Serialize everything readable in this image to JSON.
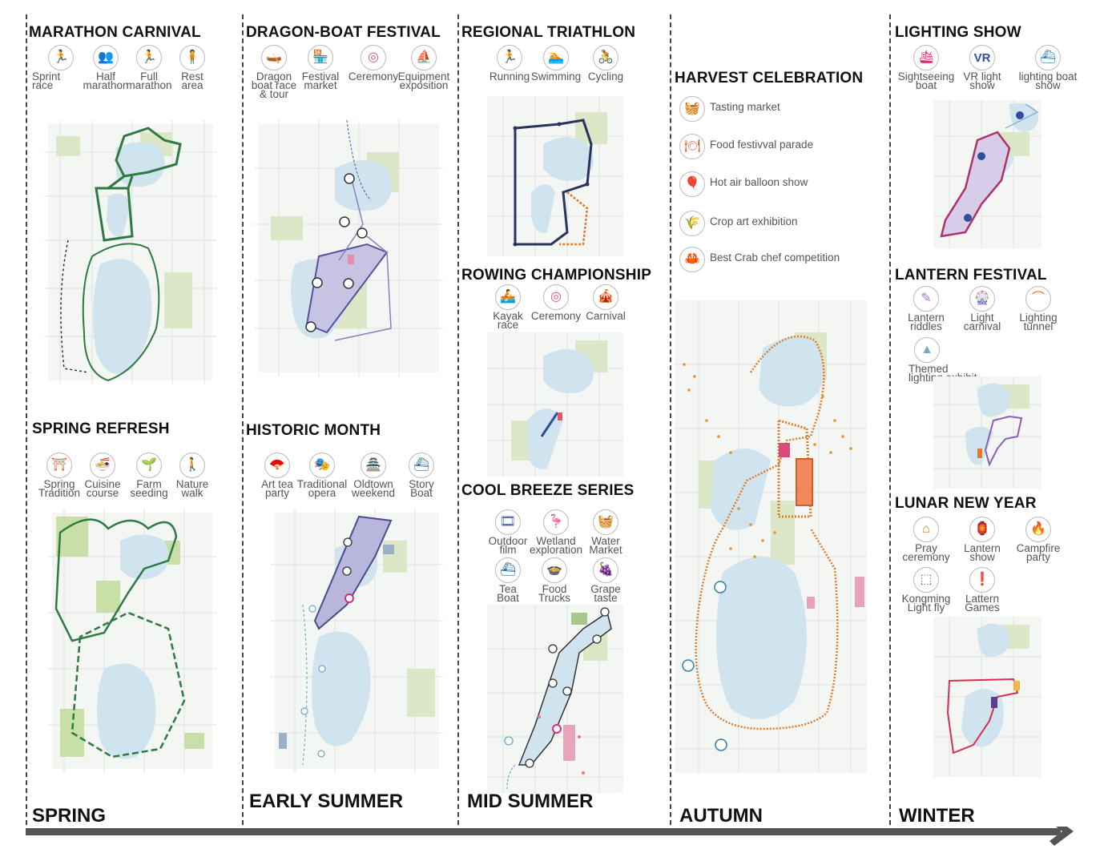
{
  "columns": [
    {
      "season": "SPRING",
      "events": [
        {
          "title": "MARATHON CARNIVAL",
          "activities": [
            {
              "label": "Sprint\nrace",
              "icon": "runner-icon",
              "color": "#2c7fb8"
            },
            {
              "label": "Half\nmarathon",
              "icon": "group-runners-icon",
              "color": "#3a9a3a"
            },
            {
              "label": "Full\nmarathon",
              "icon": "runner-icon",
              "color": "#2f8c63"
            },
            {
              "label": "Rest\narea",
              "icon": "resting-person-icon",
              "color": "#e8912d"
            }
          ]
        },
        {
          "title": "SPRING REFRESH",
          "activities": [
            {
              "label": "Spring\nTradition",
              "icon": "temple-icon",
              "color": "#d9642e"
            },
            {
              "label": "Cuisine\ncourse",
              "icon": "bowl-icon",
              "color": "#b5541f"
            },
            {
              "label": "Farm\nseeding",
              "icon": "sprout-icon",
              "color": "#b9c98a"
            },
            {
              "label": "Nature\nwalk",
              "icon": "walking-couple-icon",
              "color": "#2e7d4f"
            }
          ]
        }
      ]
    },
    {
      "season": "EARLY\nSUMMER",
      "events": [
        {
          "title": "DRAGON-BOAT FESTIVAL",
          "activities": [
            {
              "label": "Dragon\nboat race\n& tour",
              "icon": "dragon-boat-icon",
              "color": "#5b3f8f"
            },
            {
              "label": "Festival\nmarket",
              "icon": "market-icon",
              "color": "#e59a4a"
            },
            {
              "label": "Ceremony",
              "icon": "target-icon",
              "color": "#e0566d"
            },
            {
              "label": "Equipment\nexposition",
              "icon": "equipment-icon",
              "color": "#e6b84a"
            }
          ]
        },
        {
          "title": "HISTORIC MONTH",
          "activities": [
            {
              "label": "Art tea\nparty",
              "icon": "fan-icon",
              "color": "#b53a8c"
            },
            {
              "label": "Traditional\nopera",
              "icon": "opera-figure-icon",
              "color": "#6b6aa8"
            },
            {
              "label": "Oldtown\nweekend",
              "icon": "pagoda-icon",
              "color": "#d86b4a"
            },
            {
              "label": "Story\nBoat",
              "icon": "boat-icon",
              "color": "#2b6e9e"
            }
          ]
        }
      ]
    },
    {
      "season": "MID\nSUMMER",
      "events": [
        {
          "title": "REGIONAL TRIATHLON",
          "activities": [
            {
              "label": "Running",
              "icon": "runner-icon",
              "color": "#2557a8"
            },
            {
              "label": "Swimming",
              "icon": "swimmer-icon",
              "color": "#2e8b57"
            },
            {
              "label": "Cycling",
              "icon": "cyclist-icon",
              "color": "#e07a2c"
            }
          ]
        },
        {
          "title": "ROWING CHAMPIONSHIP",
          "activities": [
            {
              "label": "Kayak\nrace",
              "icon": "kayak-icon",
              "color": "#2f4f9e"
            },
            {
              "label": "Ceremony",
              "icon": "target-icon",
              "color": "#e0566d"
            },
            {
              "label": "Carnival",
              "icon": "carnival-icon",
              "color": "#e39a5a"
            }
          ]
        },
        {
          "title": "COOL BREEZE SERIES",
          "activities": [
            {
              "label": "Outdoor\nfilm",
              "icon": "film-reel-icon",
              "color": "#3e5fa8"
            },
            {
              "label": "Wetland\nexploration",
              "icon": "heron-icon",
              "color": "#9bb36a"
            },
            {
              "label": "Water\nMarket",
              "icon": "basket-icon",
              "color": "#d9607a"
            },
            {
              "label": "Tea\nBoat",
              "icon": "boat-icon",
              "color": "#1f5f8b"
            },
            {
              "label": "Food\nTrucks",
              "icon": "bowl-icon",
              "color": "#7a4f9b"
            },
            {
              "label": "Grape\ntaste",
              "icon": "grapes-icon",
              "color": "#e3924a"
            }
          ]
        }
      ]
    },
    {
      "season": "AUTUMN",
      "events": [
        {
          "title": "HARVEST CELEBRATION",
          "activities": [
            {
              "label": "Tasting market",
              "icon": "basket-icon",
              "color": "#d9607a"
            },
            {
              "label": "Food festivval parade",
              "icon": "plate-icon",
              "color": "#e2582f"
            },
            {
              "label": "Hot air balloon show",
              "icon": "balloon-icon",
              "color": "#e07a2c"
            },
            {
              "label": "Crop art exhibition",
              "icon": "crop-icon",
              "color": "#b8c780"
            },
            {
              "label": "Best Crab chef competition",
              "icon": "crab-icon",
              "color": "#e0632a"
            }
          ]
        }
      ]
    },
    {
      "season": "WINTER",
      "events": [
        {
          "title": "LIGHTING SHOW",
          "activities": [
            {
              "label": "Sightseeing\nboat",
              "icon": "cruise-boat-icon",
              "color": "#d62e6a"
            },
            {
              "label": "VR light\nshow",
              "icon": "vr-icon",
              "color": "#2f4f9e"
            },
            {
              "label": "lighting boat\nshow",
              "icon": "boat-icon",
              "color": "#2b7fb0"
            }
          ]
        },
        {
          "title": "LANTERN FESTIVAL",
          "activities": [
            {
              "label": "Lantern\nriddles",
              "icon": "lantern-riddle-icon",
              "color": "#a677c2"
            },
            {
              "label": "Light\ncarnival",
              "icon": "ferris-wheel-icon",
              "color": "#d9607a"
            },
            {
              "label": "Lighting\ntunnel",
              "icon": "tunnel-icon",
              "color": "#e0782a"
            },
            {
              "label": "Themed\nlighting exhibit",
              "icon": "tower-icon",
              "color": "#7aa6c9"
            }
          ]
        },
        {
          "title": "LUNAR NEW YEAR",
          "activities": [
            {
              "label": "Pray\nceremony",
              "icon": "shrine-icon",
              "color": "#e0762a"
            },
            {
              "label": "Lantern\nshow",
              "icon": "lantern-icon",
              "color": "#e8912d"
            },
            {
              "label": "Campfire\nparty",
              "icon": "campfire-icon",
              "color": "#e0566d"
            },
            {
              "label": "Kongming\nLight fly",
              "icon": "sky-lantern-icon",
              "color": "#7a5fa8"
            },
            {
              "label": "Lattern\nGames",
              "icon": "lantern-game-icon",
              "color": "#d62e6a"
            }
          ]
        }
      ]
    }
  ]
}
